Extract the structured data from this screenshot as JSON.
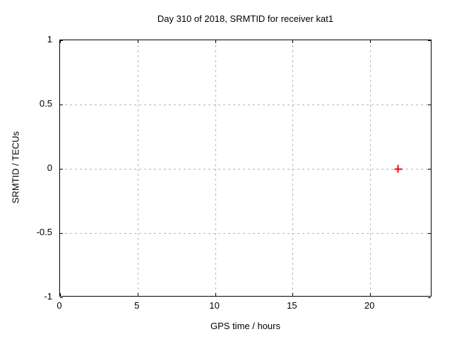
{
  "chart_data": {
    "type": "scatter",
    "title": "Day 310 of 2018, SRMTID for receiver kat1",
    "xlabel": "GPS time / hours",
    "ylabel": "SRMTID / TECUs",
    "xlim": [
      0,
      24
    ],
    "ylim": [
      -1,
      1
    ],
    "x_ticks": [
      {
        "value": 0,
        "label": "0"
      },
      {
        "value": 5,
        "label": "5"
      },
      {
        "value": 10,
        "label": "10"
      },
      {
        "value": 15,
        "label": "15"
      },
      {
        "value": 20,
        "label": "20"
      }
    ],
    "y_ticks": [
      {
        "value": -1,
        "label": "-1"
      },
      {
        "value": -0.5,
        "label": "-0.5"
      },
      {
        "value": 0,
        "label": "0"
      },
      {
        "value": 0.5,
        "label": "0.5"
      },
      {
        "value": 1,
        "label": "1"
      }
    ],
    "grid": true,
    "legend": "none",
    "series": [
      {
        "name": "SRMTID",
        "marker": "plus",
        "color": "#ff0000",
        "points": [
          {
            "x": 21.8,
            "y": 0.0
          }
        ]
      }
    ],
    "colors": {
      "axis": "#000000",
      "grid": "#b5b5b5",
      "text": "#000000",
      "background": "#ffffff",
      "marker": "#ff0000"
    }
  }
}
